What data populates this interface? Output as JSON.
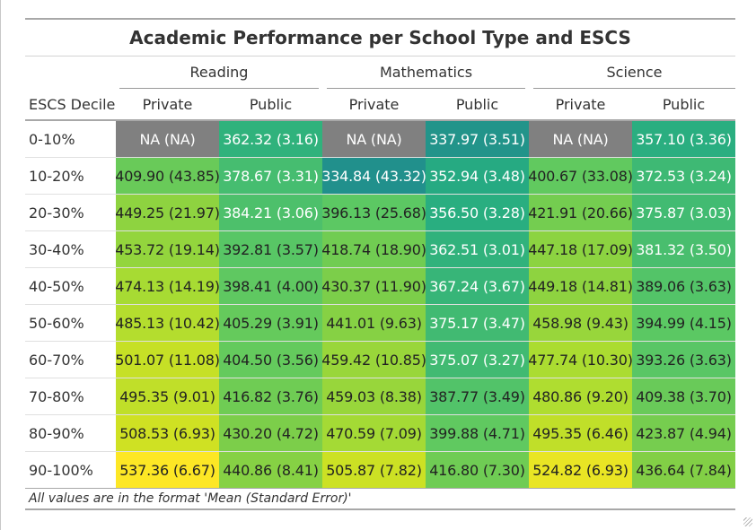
{
  "chart_data": {
    "type": "table",
    "title": "Academic Performance per School Type and ESCS",
    "stub_header": "ESCS Decile",
    "spanners": [
      "Reading",
      "Mathematics",
      "Science"
    ],
    "columns": [
      "Private",
      "Public",
      "Private",
      "Public",
      "Private",
      "Public"
    ],
    "rows": [
      {
        "label": "0-10%",
        "cells": [
          "NA (NA)",
          "362.32 (3.16)",
          "NA (NA)",
          "337.97 (3.51)",
          "NA (NA)",
          "357.10 (3.36)"
        ]
      },
      {
        "label": "10-20%",
        "cells": [
          "409.90 (43.85)",
          "378.67 (3.31)",
          "334.84 (43.32)",
          "352.94 (3.48)",
          "400.67 (33.08)",
          "372.53 (3.24)"
        ]
      },
      {
        "label": "20-30%",
        "cells": [
          "449.25 (21.97)",
          "384.21 (3.06)",
          "396.13 (25.68)",
          "356.50 (3.28)",
          "421.91 (20.66)",
          "375.87 (3.03)"
        ]
      },
      {
        "label": "30-40%",
        "cells": [
          "453.72 (19.14)",
          "392.81 (3.57)",
          "418.74 (18.90)",
          "362.51 (3.01)",
          "447.18 (17.09)",
          "381.32 (3.50)"
        ]
      },
      {
        "label": "40-50%",
        "cells": [
          "474.13 (14.19)",
          "398.41 (4.00)",
          "430.37 (11.90)",
          "367.24 (3.67)",
          "449.18 (14.81)",
          "389.06 (3.63)"
        ]
      },
      {
        "label": "50-60%",
        "cells": [
          "485.13 (10.42)",
          "405.29 (3.91)",
          "441.01 (9.63)",
          "375.17 (3.47)",
          "458.98 (9.43)",
          "394.99 (4.15)"
        ]
      },
      {
        "label": "60-70%",
        "cells": [
          "501.07 (11.08)",
          "404.50 (3.56)",
          "459.42 (10.85)",
          "375.07 (3.27)",
          "477.74 (10.30)",
          "393.26 (3.63)"
        ]
      },
      {
        "label": "70-80%",
        "cells": [
          "495.35 (9.01)",
          "416.82 (3.76)",
          "459.03 (8.38)",
          "387.77 (3.49)",
          "480.86 (9.20)",
          "409.38 (3.70)"
        ]
      },
      {
        "label": "80-90%",
        "cells": [
          "508.53 (6.93)",
          "430.20 (4.72)",
          "470.59 (7.09)",
          "399.88 (4.71)",
          "495.35 (6.46)",
          "423.87 (4.94)"
        ]
      },
      {
        "label": "90-100%",
        "cells": [
          "537.36 (6.67)",
          "440.86 (8.41)",
          "505.87 (7.82)",
          "416.80 (7.30)",
          "524.82 (6.93)",
          "436.64 (7.84)"
        ]
      }
    ],
    "footnote": "All values are in the format 'Mean (Standard Error)'",
    "color_scale": {
      "min": 334.84,
      "max": 537.36,
      "na_color": "#808080"
    }
  }
}
